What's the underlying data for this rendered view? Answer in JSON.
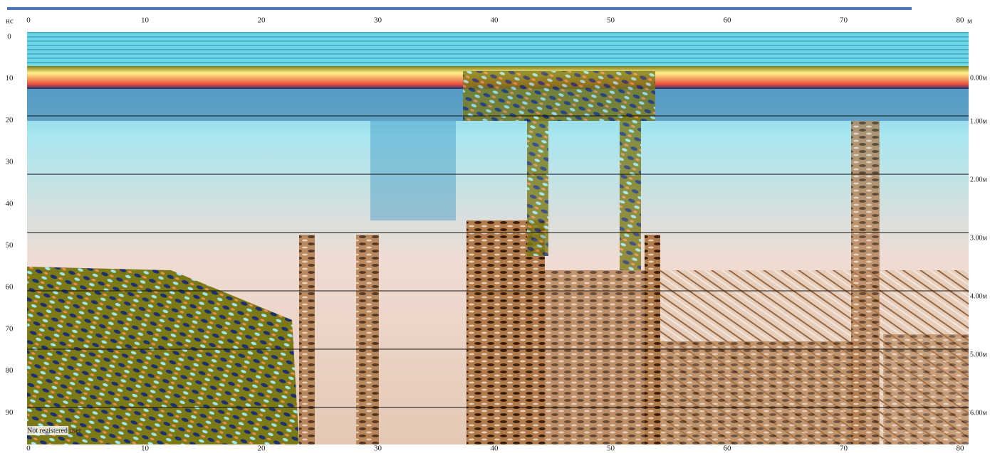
{
  "window": {
    "time_unit": "нс",
    "distance_unit": "м",
    "watermark": "Not registered user"
  },
  "top_axis": {
    "ticks": [
      0,
      10,
      20,
      30,
      40,
      50,
      60,
      70,
      80
    ]
  },
  "bottom_axis": {
    "ticks": [
      0,
      10,
      20,
      30,
      40,
      50,
      60,
      70,
      80
    ]
  },
  "left_axis": {
    "ticks": [
      0,
      10,
      20,
      30,
      40,
      50,
      60,
      70,
      80,
      90
    ]
  },
  "depth_labels": [
    "0.00м",
    "1.00м",
    "2.00м",
    "3.00м",
    "4.00м",
    "5.00м",
    "6.00м"
  ]
}
